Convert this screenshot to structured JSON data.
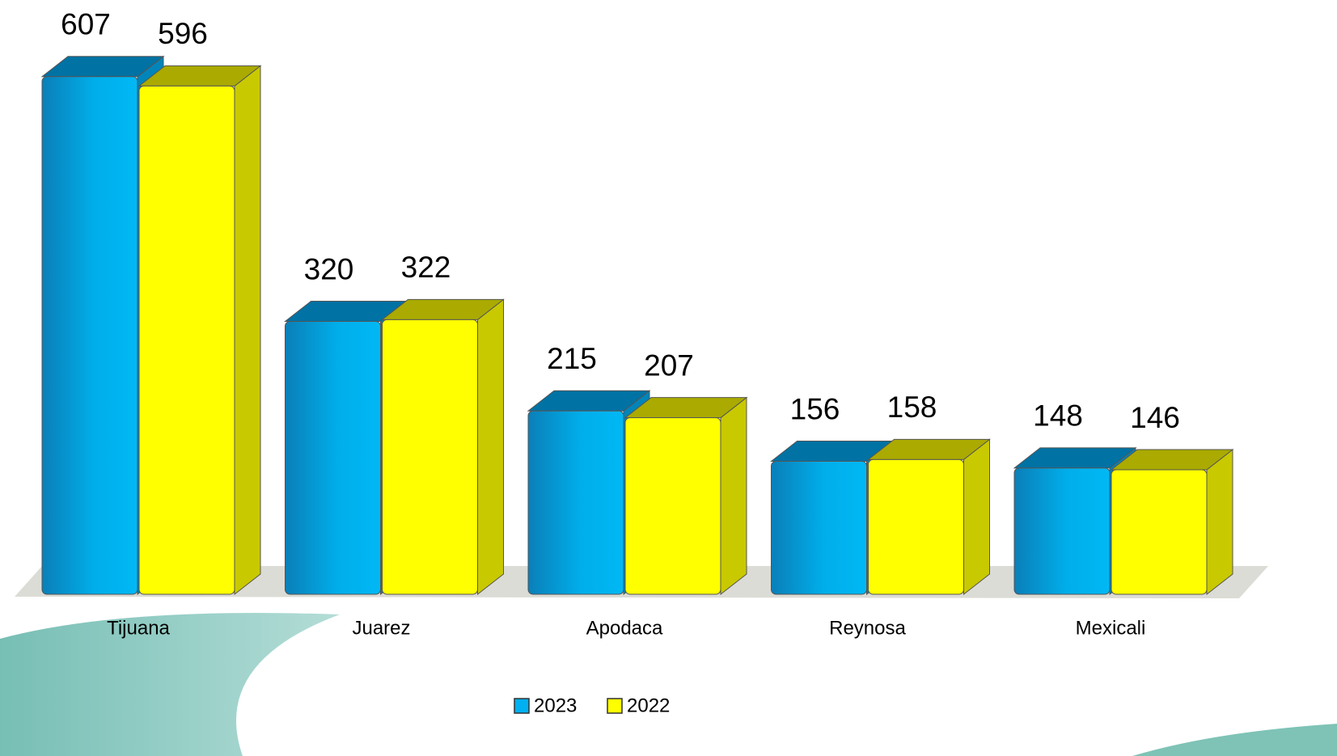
{
  "chart_data": {
    "type": "bar3d",
    "categories": [
      "Tijuana",
      "Juarez",
      "Apodaca",
      "Reynosa",
      "Mexicali"
    ],
    "series": [
      {
        "name": "2023",
        "color": "#00b0f0",
        "values": [
          607,
          320,
          215,
          156,
          148
        ]
      },
      {
        "name": "2022",
        "color": "#ffff00",
        "values": [
          596,
          322,
          207,
          158,
          146
        ]
      }
    ],
    "ylim": [
      0,
      640
    ]
  }
}
